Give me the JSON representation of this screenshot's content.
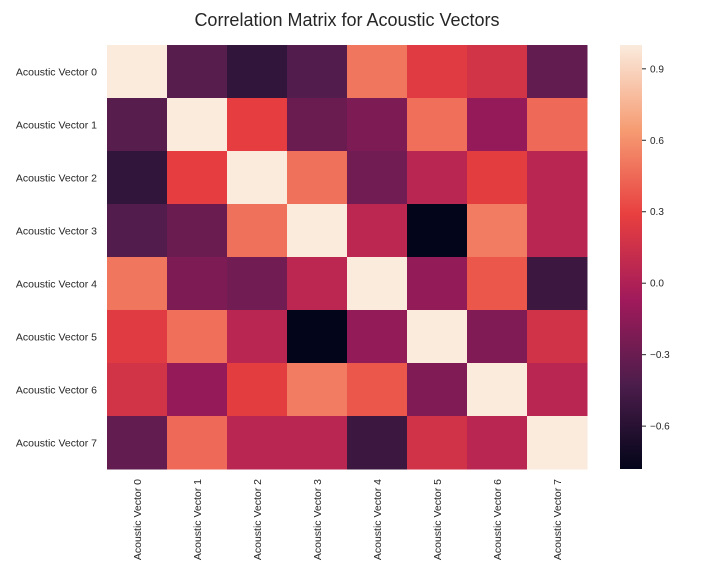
{
  "chart_data": {
    "type": "heatmap",
    "title": "Correlation Matrix for Acoustic Vectors",
    "rows": [
      "Acoustic Vector 0",
      "Acoustic Vector 1",
      "Acoustic Vector 2",
      "Acoustic Vector 3",
      "Acoustic Vector 4",
      "Acoustic Vector 5",
      "Acoustic Vector 6",
      "Acoustic Vector 7"
    ],
    "columns": [
      "Acoustic Vector 0",
      "Acoustic Vector 1",
      "Acoustic Vector 2",
      "Acoustic Vector 3",
      "Acoustic Vector 4",
      "Acoustic Vector 5",
      "Acoustic Vector 6",
      "Acoustic Vector 7"
    ],
    "values": [
      [
        1.0,
        -0.38,
        -0.55,
        -0.4,
        0.5,
        0.25,
        0.18,
        -0.33
      ],
      [
        -0.38,
        1.0,
        0.28,
        -0.3,
        -0.22,
        0.47,
        -0.12,
        0.45
      ],
      [
        -0.55,
        0.28,
        1.0,
        0.48,
        -0.27,
        0.05,
        0.27,
        0.05
      ],
      [
        -0.4,
        -0.3,
        0.48,
        1.0,
        0.06,
        -0.78,
        0.52,
        0.05
      ],
      [
        0.5,
        -0.22,
        -0.27,
        0.06,
        1.0,
        -0.13,
        0.38,
        -0.5
      ],
      [
        0.25,
        0.47,
        0.05,
        -0.78,
        -0.13,
        1.0,
        -0.2,
        0.17
      ],
      [
        0.18,
        -0.12,
        0.27,
        0.52,
        0.38,
        -0.2,
        1.0,
        0.05
      ],
      [
        -0.33,
        0.45,
        0.05,
        0.05,
        -0.5,
        0.17,
        0.05,
        1.0
      ]
    ],
    "colorbar": {
      "min": -0.78,
      "max": 1.0,
      "ticks": [
        0.9,
        0.6,
        0.3,
        0.0,
        -0.3,
        -0.6
      ],
      "tick_labels": [
        "0.9",
        "0.6",
        "0.3",
        "0.0",
        "−0.3",
        "−0.6"
      ],
      "colormap": "rocket",
      "colormap_stops": [
        "#03051a",
        "#4c1d4b",
        "#a11a5b",
        "#e83f3f",
        "#f69c73",
        "#faebdd"
      ]
    },
    "grid": false
  }
}
